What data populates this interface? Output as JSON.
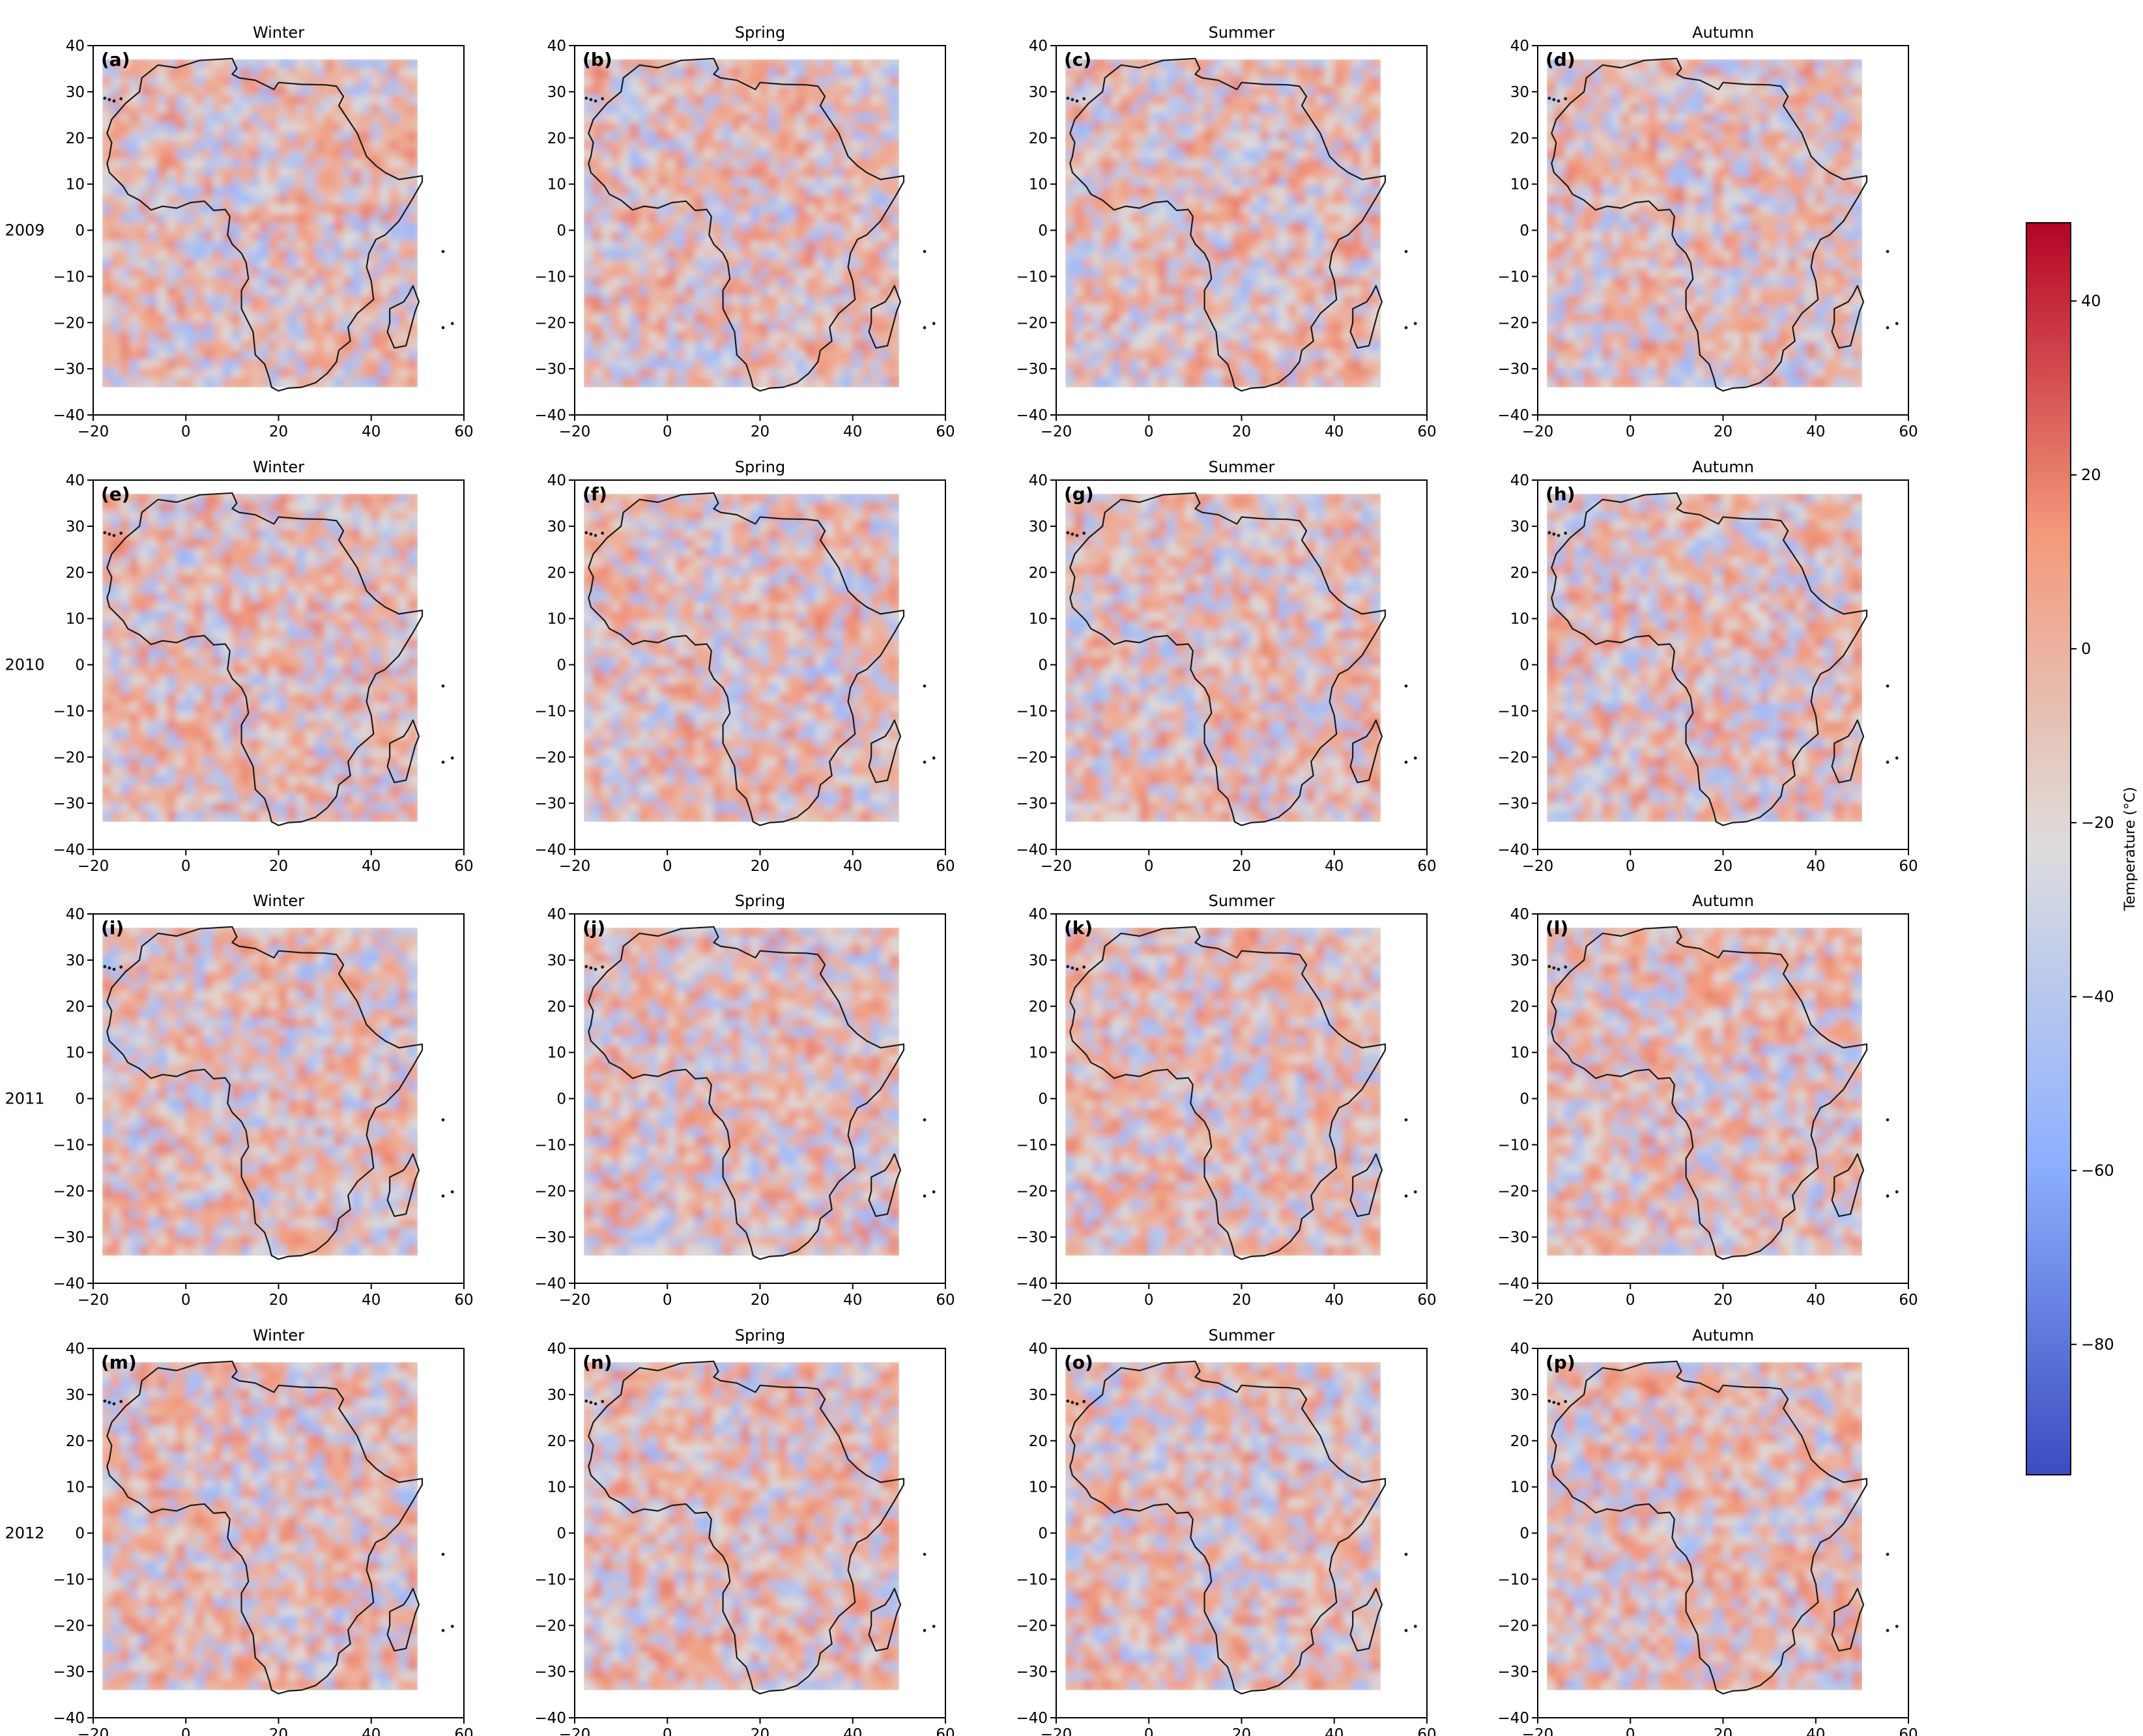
{
  "chart_data": {
    "type": "heatmap",
    "rows": [
      "2009",
      "2010",
      "2011",
      "2012"
    ],
    "columns": [
      "Winter",
      "Spring",
      "Summer",
      "Autumn"
    ],
    "panels": [
      {
        "label": "(a)",
        "title": "Winter",
        "year": "2009"
      },
      {
        "label": "(b)",
        "title": "Spring",
        "year": "2009"
      },
      {
        "label": "(c)",
        "title": "Summer",
        "year": "2009"
      },
      {
        "label": "(d)",
        "title": "Autumn",
        "year": "2009"
      },
      {
        "label": "(e)",
        "title": "Winter",
        "year": "2010"
      },
      {
        "label": "(f)",
        "title": "Spring",
        "year": "2010"
      },
      {
        "label": "(g)",
        "title": "Summer",
        "year": "2010"
      },
      {
        "label": "(h)",
        "title": "Autumn",
        "year": "2010"
      },
      {
        "label": "(i)",
        "title": "Winter",
        "year": "2011"
      },
      {
        "label": "(j)",
        "title": "Spring",
        "year": "2011"
      },
      {
        "label": "(k)",
        "title": "Summer",
        "year": "2011"
      },
      {
        "label": "(l)",
        "title": "Autumn",
        "year": "2011"
      },
      {
        "label": "(m)",
        "title": "Winter",
        "year": "2012"
      },
      {
        "label": "(n)",
        "title": "Spring",
        "year": "2012"
      },
      {
        "label": "(o)",
        "title": "Summer",
        "year": "2012"
      },
      {
        "label": "(p)",
        "title": "Autumn",
        "year": "2012"
      }
    ],
    "x_ticks": [
      -20,
      0,
      20,
      40,
      60
    ],
    "y_ticks": [
      -40,
      -30,
      -20,
      -10,
      0,
      10,
      20,
      30,
      40
    ],
    "xlim": [
      -20,
      60
    ],
    "ylim": [
      -40,
      40
    ],
    "data_extent": {
      "lon": [
        -18,
        50
      ],
      "lat": [
        -34,
        37
      ]
    },
    "colormap": "coolwarm",
    "colorbar": {
      "label": "Temperature (°C)",
      "range": [
        -95,
        49
      ],
      "ticks": [
        40,
        20,
        0,
        -20,
        -40,
        -60,
        -80
      ]
    },
    "coastline": [
      [
        -17,
        21
      ],
      [
        -16,
        24
      ],
      [
        -13,
        27.5
      ],
      [
        -10,
        30
      ],
      [
        -9.5,
        33
      ],
      [
        -6,
        35.8
      ],
      [
        -2,
        35.2
      ],
      [
        3,
        36.8
      ],
      [
        10,
        37.2
      ],
      [
        11,
        35
      ],
      [
        10,
        33.8
      ],
      [
        11.5,
        33
      ],
      [
        15,
        32.5
      ],
      [
        19,
        30.5
      ],
      [
        20,
        32
      ],
      [
        25,
        31.6
      ],
      [
        30,
        31.5
      ],
      [
        32.5,
        31.2
      ],
      [
        34,
        29
      ],
      [
        33,
        27
      ],
      [
        35,
        24
      ],
      [
        37,
        21
      ],
      [
        39,
        16
      ],
      [
        41,
        14
      ],
      [
        43,
        12.5
      ],
      [
        46,
        11
      ],
      [
        51,
        11.8
      ],
      [
        51,
        10.5
      ],
      [
        49,
        7
      ],
      [
        46,
        2
      ],
      [
        43,
        -1
      ],
      [
        41,
        -2
      ],
      [
        39.5,
        -5
      ],
      [
        39,
        -8
      ],
      [
        40,
        -11
      ],
      [
        40.5,
        -15
      ],
      [
        37,
        -18
      ],
      [
        35,
        -21
      ],
      [
        35.5,
        -24
      ],
      [
        33,
        -26
      ],
      [
        32.5,
        -28.5
      ],
      [
        30.5,
        -31
      ],
      [
        28,
        -33
      ],
      [
        25,
        -34
      ],
      [
        22,
        -34.2
      ],
      [
        20,
        -34.8
      ],
      [
        18.5,
        -34
      ],
      [
        18,
        -32
      ],
      [
        17,
        -29
      ],
      [
        15,
        -27
      ],
      [
        14.5,
        -22
      ],
      [
        12,
        -17
      ],
      [
        12,
        -13
      ],
      [
        13.5,
        -10.5
      ],
      [
        13,
        -7
      ],
      [
        12,
        -5
      ],
      [
        10,
        -3
      ],
      [
        9,
        -1
      ],
      [
        9.5,
        3
      ],
      [
        8.5,
        4.5
      ],
      [
        6,
        4.3
      ],
      [
        4,
        6.3
      ],
      [
        1,
        6
      ],
      [
        -2,
        4.8
      ],
      [
        -5,
        5.2
      ],
      [
        -7.5,
        4.4
      ],
      [
        -10,
        6.5
      ],
      [
        -12.5,
        7.8
      ],
      [
        -13.5,
        9.5
      ],
      [
        -15,
        11
      ],
      [
        -16.5,
        12.5
      ],
      [
        -17,
        14.5
      ],
      [
        -16.5,
        16
      ],
      [
        -16,
        19
      ],
      [
        -17,
        21
      ]
    ],
    "madagascar": [
      [
        49,
        -12
      ],
      [
        50.3,
        -15.5
      ],
      [
        49.5,
        -17.5
      ],
      [
        47.5,
        -25
      ],
      [
        45,
        -25.5
      ],
      [
        43.5,
        -22
      ],
      [
        44,
        -20
      ],
      [
        44,
        -17
      ],
      [
        47,
        -15.5
      ],
      [
        48,
        -14
      ],
      [
        49,
        -12
      ]
    ],
    "islands": [
      [
        55.5,
        -4.6
      ],
      [
        55.5,
        -21.1
      ],
      [
        57.5,
        -20.2
      ],
      [
        -16.5,
        28.3
      ],
      [
        -15.5,
        28
      ],
      [
        -17.5,
        28.6
      ],
      [
        -14,
        28.5
      ]
    ]
  },
  "colors": {
    "frame": "#000000",
    "coast": "#1a1a1a"
  }
}
